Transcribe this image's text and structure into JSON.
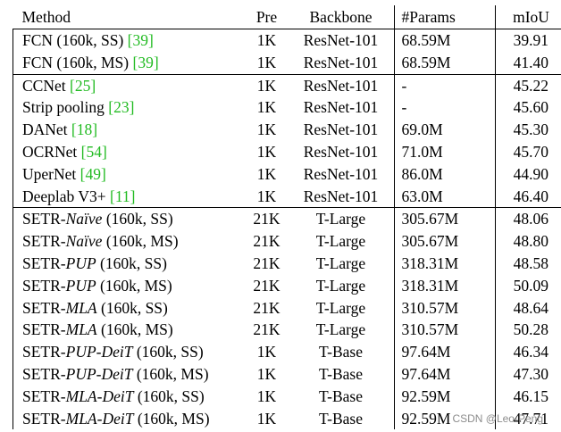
{
  "table": {
    "headers": [
      "Method",
      "Pre",
      "Backbone",
      "#Params",
      "mIoU"
    ],
    "groups": [
      [
        {
          "parts": [
            {
              "t": "FCN (160k, SS) "
            },
            {
              "t": "[39]",
              "ref": true
            }
          ],
          "pre": "1K",
          "backbone": "ResNet-101",
          "params": "68.59M",
          "miou": "39.91"
        },
        {
          "parts": [
            {
              "t": "FCN (160k, MS) "
            },
            {
              "t": "[39]",
              "ref": true
            }
          ],
          "pre": "1K",
          "backbone": "ResNet-101",
          "params": "68.59M",
          "miou": "41.40"
        }
      ],
      [
        {
          "parts": [
            {
              "t": "CCNet "
            },
            {
              "t": "[25]",
              "ref": true
            }
          ],
          "pre": "1K",
          "backbone": "ResNet-101",
          "params": "-",
          "miou": "45.22"
        },
        {
          "parts": [
            {
              "t": "Strip pooling "
            },
            {
              "t": "[23]",
              "ref": true
            }
          ],
          "pre": "1K",
          "backbone": "ResNet-101",
          "params": "-",
          "miou": "45.60"
        },
        {
          "parts": [
            {
              "t": "DANet "
            },
            {
              "t": "[18]",
              "ref": true
            }
          ],
          "pre": "1K",
          "backbone": "ResNet-101",
          "params": "69.0M",
          "miou": "45.30"
        },
        {
          "parts": [
            {
              "t": "OCRNet "
            },
            {
              "t": "[54]",
              "ref": true
            }
          ],
          "pre": "1K",
          "backbone": "ResNet-101",
          "params": "71.0M",
          "miou": "45.70"
        },
        {
          "parts": [
            {
              "t": "UperNet "
            },
            {
              "t": "[49]",
              "ref": true
            }
          ],
          "pre": "1K",
          "backbone": "ResNet-101",
          "params": "86.0M",
          "miou": "44.90"
        },
        {
          "parts": [
            {
              "t": "Deeplab V3+ "
            },
            {
              "t": "[11]",
              "ref": true
            }
          ],
          "pre": "1K",
          "backbone": "ResNet-101",
          "params": "63.0M",
          "miou": "46.40"
        }
      ],
      [
        {
          "parts": [
            {
              "t": "SETR-"
            },
            {
              "t": "Naïve",
              "it": true
            },
            {
              "t": " (160k, SS)"
            }
          ],
          "pre": "21K",
          "backbone": "T-Large",
          "params": "305.67M",
          "miou": "48.06"
        },
        {
          "parts": [
            {
              "t": "SETR-"
            },
            {
              "t": "Naïve",
              "it": true
            },
            {
              "t": " (160k, MS)"
            }
          ],
          "pre": "21K",
          "backbone": "T-Large",
          "params": "305.67M",
          "miou": "48.80"
        },
        {
          "parts": [
            {
              "t": "SETR-"
            },
            {
              "t": "PUP",
              "it": true
            },
            {
              "t": " (160k, SS)"
            }
          ],
          "pre": "21K",
          "backbone": "T-Large",
          "params": "318.31M",
          "miou": "48.58"
        },
        {
          "parts": [
            {
              "t": "SETR-"
            },
            {
              "t": "PUP",
              "it": true
            },
            {
              "t": " (160k, MS)"
            }
          ],
          "pre": "21K",
          "backbone": "T-Large",
          "params": "318.31M",
          "miou": "50.09"
        },
        {
          "parts": [
            {
              "t": "SETR-"
            },
            {
              "t": "MLA",
              "it": true
            },
            {
              "t": " (160k, SS)"
            }
          ],
          "pre": "21K",
          "backbone": "T-Large",
          "params": "310.57M",
          "miou": "48.64"
        },
        {
          "parts": [
            {
              "t": "SETR-"
            },
            {
              "t": "MLA",
              "it": true
            },
            {
              "t": " (160k, MS)"
            }
          ],
          "pre": "21K",
          "backbone": "T-Large",
          "params": "310.57M",
          "miou": "50.28",
          "best": true
        },
        {
          "parts": [
            {
              "t": "SETR-"
            },
            {
              "t": "PUP-DeiT",
              "it": true
            },
            {
              "t": " (160k, SS)"
            }
          ],
          "pre": "1K",
          "backbone": "T-Base",
          "params": "97.64M",
          "miou": "46.34"
        },
        {
          "parts": [
            {
              "t": "SETR-"
            },
            {
              "t": "PUP-DeiT",
              "it": true
            },
            {
              "t": " (160k, MS)"
            }
          ],
          "pre": "1K",
          "backbone": "T-Base",
          "params": "97.64M",
          "miou": "47.30"
        },
        {
          "parts": [
            {
              "t": "SETR-"
            },
            {
              "t": "MLA-DeiT",
              "it": true
            },
            {
              "t": " (160k, SS)"
            }
          ],
          "pre": "1K",
          "backbone": "T-Base",
          "params": "92.59M",
          "miou": "46.15"
        },
        {
          "parts": [
            {
              "t": "SETR-"
            },
            {
              "t": "MLA-DeiT",
              "it": true
            },
            {
              "t": " (160k, MS)"
            }
          ],
          "pre": "1K",
          "backbone": "T-Base",
          "params": "92.59M",
          "miou": "47.71"
        }
      ]
    ]
  },
  "watermark": "CSDN @Leo-Peng",
  "colors": {
    "reference": "#22bb22",
    "text": "#000000",
    "watermark": "#787878"
  }
}
